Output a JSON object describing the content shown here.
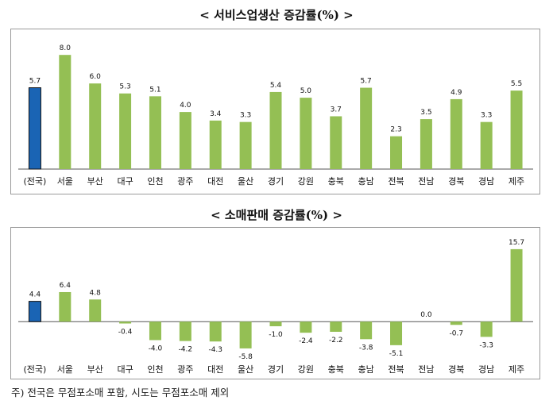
{
  "titles": {
    "services": "< 서비스업생산 증감률(%) >",
    "retail": "< 소매판매 증감률(%) >"
  },
  "footnote": "주) 전국은 무점포소매 포함, 시도는 무점포소매 제외",
  "colors": {
    "national": "#1a64b4",
    "regional": "#94bf54"
  },
  "chart_data": [
    {
      "type": "bar",
      "title": "서비스업생산 증감률(%)",
      "categories": [
        "(전국)",
        "서울",
        "부산",
        "대구",
        "인천",
        "광주",
        "대전",
        "울산",
        "경기",
        "강원",
        "충북",
        "충남",
        "전북",
        "전남",
        "경북",
        "경남",
        "제주"
      ],
      "values": [
        5.7,
        8.0,
        6.0,
        5.3,
        5.1,
        4.0,
        3.4,
        3.3,
        5.4,
        5.0,
        3.7,
        5.7,
        2.3,
        3.5,
        4.9,
        3.3,
        5.5
      ],
      "labels": [
        "5.7",
        "8.0",
        "6.0",
        "5.3",
        "5.1",
        "4.0",
        "3.4",
        "3.3",
        "5.4",
        "5.0",
        "3.7",
        "5.7",
        "2.3",
        "3.5",
        "4.9",
        "3.3",
        "5.5"
      ],
      "ylim": [
        0,
        8.4
      ],
      "grid": false
    },
    {
      "type": "bar",
      "title": "소매판매 증감률(%)",
      "categories": [
        "(전국)",
        "서울",
        "부산",
        "대구",
        "인천",
        "광주",
        "대전",
        "울산",
        "경기",
        "강원",
        "충북",
        "충남",
        "전북",
        "전남",
        "경북",
        "경남",
        "제주"
      ],
      "values": [
        4.4,
        6.4,
        4.8,
        -0.4,
        -4.0,
        -4.2,
        -4.3,
        -5.8,
        -1.0,
        -2.4,
        -2.2,
        -3.8,
        -5.1,
        0.0,
        -0.7,
        -3.3,
        15.7
      ],
      "labels": [
        "4.4",
        "6.4",
        "4.8",
        "-0.4",
        "-4.0",
        "-4.2",
        "-4.3",
        "-5.8",
        "-1.0",
        "-2.4",
        "-2.2",
        "-3.8",
        "-5.1",
        "0.0",
        "-0.7",
        "-3.3",
        "15.7"
      ],
      "ylim": [
        -6.5,
        16.2
      ],
      "grid": false
    }
  ]
}
